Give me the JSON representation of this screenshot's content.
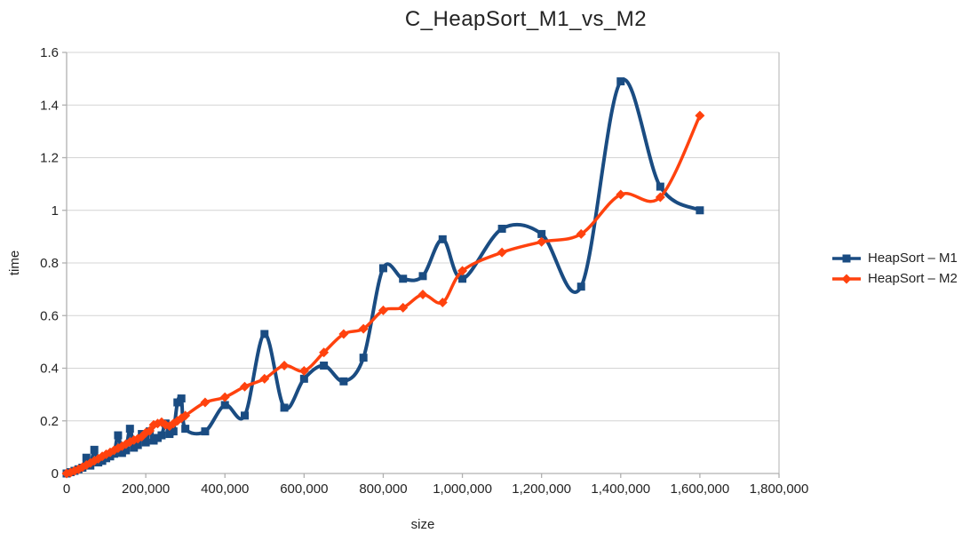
{
  "chart_data": {
    "type": "line",
    "title": "C_HeapSort_M1_vs_M2",
    "xlabel": "size",
    "ylabel": "time",
    "xlim": [
      0,
      1800000
    ],
    "ylim": [
      0,
      1.6
    ],
    "x_ticks": [
      0,
      200000,
      400000,
      600000,
      800000,
      1000000,
      1200000,
      1400000,
      1600000,
      1800000
    ],
    "x_tick_labels": [
      "0",
      "200,000",
      "400,000",
      "600,000",
      "800,000",
      "1,000,000",
      "1,200,000",
      "1,400,000",
      "1,600,000",
      "1,800,000"
    ],
    "y_ticks": [
      0,
      0.2,
      0.4,
      0.6,
      0.8,
      1.0,
      1.2,
      1.4,
      1.6
    ],
    "y_tick_labels": [
      "0",
      "0.2",
      "0.4",
      "0.6",
      "0.8",
      "1",
      "1.2",
      "1.4",
      "1.6"
    ],
    "grid": "horizontal",
    "legend_position": "right",
    "smooth": true,
    "x": [
      0,
      10000,
      20000,
      30000,
      40000,
      50000,
      60000,
      70000,
      80000,
      90000,
      100000,
      110000,
      120000,
      130000,
      140000,
      150000,
      160000,
      170000,
      180000,
      190000,
      200000,
      210000,
      220000,
      230000,
      240000,
      250000,
      260000,
      270000,
      280000,
      290000,
      300000,
      350000,
      400000,
      450000,
      500000,
      550000,
      600000,
      650000,
      700000,
      750000,
      800000,
      850000,
      900000,
      950000,
      1000000,
      1100000,
      1200000,
      1300000,
      1400000,
      1500000,
      1600000
    ],
    "series": [
      {
        "name": "HeapSort – M1",
        "color": "#1a4c82",
        "marker": "square",
        "values": [
          0,
          0.005,
          0.01,
          0.016,
          0.022,
          0.06,
          0.03,
          0.09,
          0.042,
          0.048,
          0.058,
          0.065,
          0.075,
          0.145,
          0.078,
          0.088,
          0.17,
          0.098,
          0.108,
          0.15,
          0.118,
          0.16,
          0.125,
          0.135,
          0.145,
          0.19,
          0.15,
          0.16,
          0.27,
          0.285,
          0.17,
          0.16,
          0.26,
          0.22,
          0.53,
          0.25,
          0.36,
          0.41,
          0.35,
          0.44,
          0.78,
          0.74,
          0.75,
          0.89,
          0.74,
          0.93,
          0.91,
          0.71,
          1.49,
          1.09,
          1.0
        ]
      },
      {
        "name": "HeapSort – M2",
        "color": "#ff420e",
        "marker": "diamond",
        "values": [
          0,
          0.004,
          0.01,
          0.016,
          0.024,
          0.032,
          0.04,
          0.048,
          0.056,
          0.065,
          0.073,
          0.08,
          0.088,
          0.096,
          0.104,
          0.112,
          0.12,
          0.127,
          0.132,
          0.14,
          0.155,
          0.162,
          0.185,
          0.19,
          0.195,
          0.185,
          0.18,
          0.19,
          0.2,
          0.21,
          0.22,
          0.27,
          0.29,
          0.33,
          0.36,
          0.41,
          0.39,
          0.46,
          0.53,
          0.55,
          0.62,
          0.63,
          0.68,
          0.65,
          0.77,
          0.84,
          0.88,
          0.91,
          1.06,
          1.05,
          1.36
        ]
      }
    ]
  },
  "colors": {
    "background": "#ffffff",
    "gridline": "#d4d4d4",
    "axis": "#b0b0b0",
    "text": "#232323",
    "series_m1": "#1a4c82",
    "series_m2": "#ff420e"
  }
}
